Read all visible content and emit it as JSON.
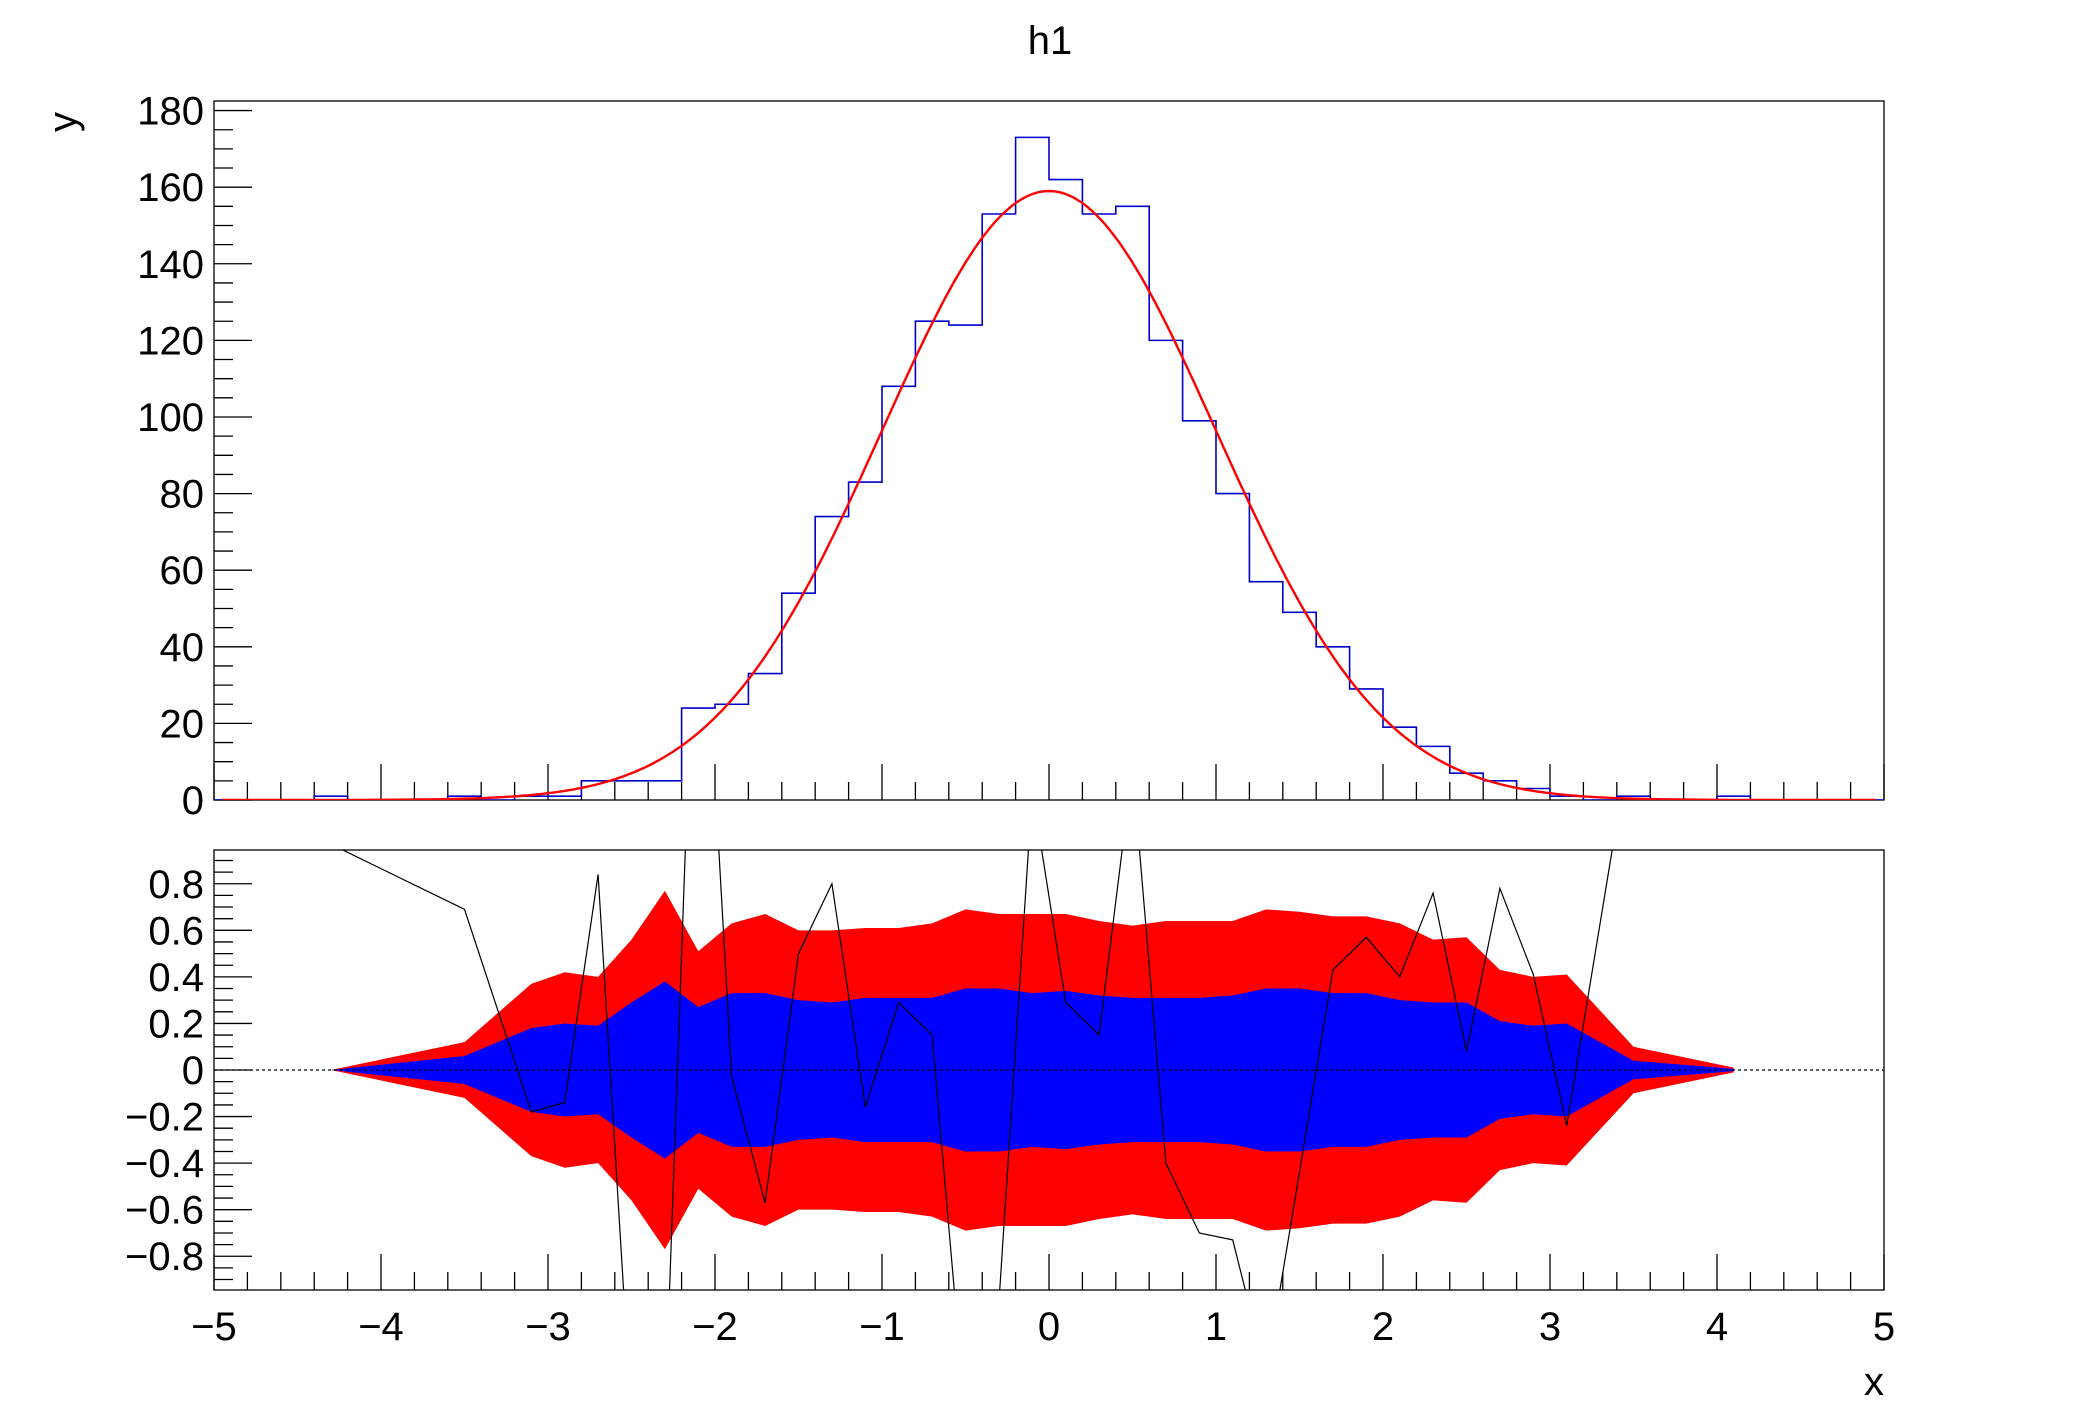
{
  "chart_data": [
    {
      "type": "bar",
      "style": "step-histogram",
      "title": "h1",
      "xlabel": "x",
      "ylabel": "y",
      "xlim": [
        -5,
        5
      ],
      "ylim": [
        0,
        182.5
      ],
      "grid": false,
      "bin_width": 0.2,
      "x": [
        -4.9,
        -4.7,
        -4.5,
        -4.3,
        -4.1,
        -3.9,
        -3.7,
        -3.5,
        -3.3,
        -3.1,
        -2.9,
        -2.7,
        -2.5,
        -2.3,
        -2.1,
        -1.9,
        -1.7,
        -1.5,
        -1.3,
        -1.1,
        -0.9,
        -0.7,
        -0.5,
        -0.3,
        -0.1,
        0.1,
        0.3,
        0.5,
        0.7,
        0.9,
        1.1,
        1.3,
        1.5,
        1.7,
        1.9,
        2.1,
        2.3,
        2.5,
        2.7,
        2.9,
        3.1,
        3.3,
        3.5,
        3.7,
        3.9,
        4.1,
        4.3,
        4.5,
        4.7,
        4.9
      ],
      "values": [
        0,
        0,
        0,
        1,
        0,
        0,
        0,
        1,
        0,
        1,
        1,
        5,
        5,
        5,
        24,
        25,
        33,
        54,
        74,
        83,
        108,
        125,
        124,
        153,
        173,
        162,
        153,
        155,
        120,
        99,
        80,
        57,
        49,
        40,
        29,
        19,
        14,
        7,
        5,
        3,
        1,
        0,
        1,
        0,
        0,
        1,
        0,
        0,
        0,
        0
      ],
      "fit": {
        "type": "gaus",
        "constant": 159,
        "mean": 0.0,
        "sigma": 1.0
      },
      "yticks": [
        "0",
        "20",
        "40",
        "60",
        "80",
        "100",
        "120",
        "140",
        "160",
        "180"
      ],
      "colors": {
        "histogram": "#0000cc",
        "fit": "#ff0000"
      }
    },
    {
      "type": "area",
      "xlabel": "x",
      "xlim": [
        -5,
        5
      ],
      "ylim": [
        -0.945,
        0.945
      ],
      "x": [
        -4.3,
        -3.5,
        -3.1,
        -2.9,
        -2.7,
        -2.5,
        -2.3,
        -2.1,
        -1.9,
        -1.7,
        -1.5,
        -1.3,
        -1.1,
        -0.9,
        -0.7,
        -0.5,
        -0.3,
        -0.1,
        0.1,
        0.3,
        0.5,
        0.7,
        0.9,
        1.1,
        1.3,
        1.5,
        1.7,
        1.9,
        2.1,
        2.3,
        2.5,
        2.7,
        2.9,
        3.1,
        3.5,
        4.1
      ],
      "band_2sigma": [
        0.0,
        0.12,
        0.37,
        0.42,
        0.4,
        0.56,
        0.77,
        0.51,
        0.63,
        0.67,
        0.6,
        0.6,
        0.61,
        0.61,
        0.63,
        0.69,
        0.67,
        0.67,
        0.67,
        0.64,
        0.62,
        0.64,
        0.64,
        0.64,
        0.69,
        0.68,
        0.66,
        0.66,
        0.63,
        0.56,
        0.57,
        0.43,
        0.4,
        0.41,
        0.1,
        0.01
      ],
      "band_1sigma": [
        0.0,
        0.06,
        0.18,
        0.2,
        0.19,
        0.29,
        0.38,
        0.27,
        0.33,
        0.33,
        0.3,
        0.29,
        0.31,
        0.31,
        0.31,
        0.35,
        0.35,
        0.33,
        0.34,
        0.32,
        0.31,
        0.31,
        0.31,
        0.32,
        0.35,
        0.35,
        0.33,
        0.33,
        0.3,
        0.29,
        0.29,
        0.21,
        0.19,
        0.2,
        0.04,
        0.005
      ],
      "residuals": [
        0.97,
        0.69,
        -0.18,
        -0.14,
        0.84,
        -1.5,
        -1.5,
        2.5,
        -0.03,
        -0.57,
        0.5,
        0.8,
        -0.16,
        0.29,
        0.15,
        -1.5,
        -1.0,
        1.2,
        0.29,
        0.15,
        1.3,
        -0.4,
        -0.7,
        -0.73,
        -1.3,
        -0.44,
        0.43,
        0.57,
        0.4,
        0.76,
        0.08,
        0.78,
        0.41,
        -0.24,
        1.5,
        3.0
      ],
      "yticks": [
        "0.8",
        "0.6",
        "0.4",
        "0.2",
        "0",
        "−0.2",
        "−0.4",
        "−0.6",
        "−0.8"
      ],
      "ytick_values": [
        0.8,
        0.6,
        0.4,
        0.2,
        0,
        -0.2,
        -0.4,
        -0.6,
        -0.8
      ],
      "xticks": [
        "−5",
        "−4",
        "−3",
        "−2",
        "−1",
        "0",
        "1",
        "2",
        "3",
        "4",
        "5"
      ],
      "colors": {
        "band_2sigma": "#ff0000",
        "band_1sigma": "#0000ff",
        "residuals": "#000000"
      }
    }
  ]
}
